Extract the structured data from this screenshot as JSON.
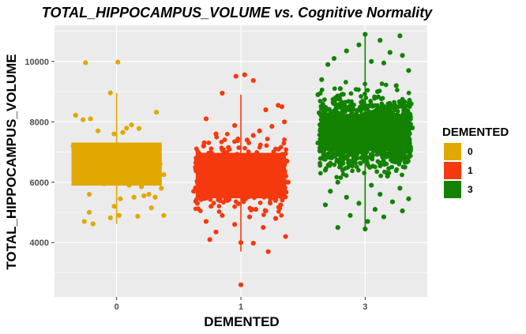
{
  "chart_data": {
    "type": "box",
    "title": "TOTAL_HIPPOCAMPUS_VOLUME vs. Cognitive Normality",
    "xlabel": "DEMENTED",
    "ylabel": "TOTAL_HIPPOCAMPUS_VOLUME",
    "categories": [
      "0",
      "1",
      "3"
    ],
    "y_ticks": [
      4000,
      6000,
      8000,
      10000
    ],
    "ylim": [
      2200,
      11200
    ],
    "grid": true,
    "legend": {
      "title": "DEMENTED",
      "position": "right",
      "entries": [
        "0",
        "1",
        "3"
      ]
    },
    "colors": {
      "0": "#E0A800",
      "1": "#F5390E",
      "3": "#128200",
      "panel": "#EBEBEB",
      "grid": "#FFFFFF"
    },
    "groups": [
      {
        "name": "0",
        "q1": 5900,
        "median": 5950,
        "q3": 7300,
        "whisker_low": 4620,
        "whisker_high": 8950,
        "points": [
          [
            -0.25,
            9960
          ],
          [
            0.01,
            9980
          ],
          [
            -0.05,
            8960
          ],
          [
            0.32,
            8320
          ],
          [
            -0.33,
            8220
          ],
          [
            -0.27,
            8070
          ],
          [
            -0.21,
            8100
          ],
          [
            0.12,
            7900
          ],
          [
            0.08,
            7790
          ],
          [
            0.18,
            7780
          ],
          [
            -0.15,
            7700
          ],
          [
            -0.02,
            7600
          ],
          [
            0.05,
            7650
          ],
          [
            -0.35,
            7200
          ],
          [
            0.25,
            7100
          ],
          [
            0.15,
            6900
          ],
          [
            0.35,
            6600
          ],
          [
            0.38,
            6250
          ],
          [
            0.3,
            6150
          ],
          [
            -0.1,
            5950
          ],
          [
            0.1,
            5900
          ],
          [
            0.2,
            5850
          ],
          [
            0.36,
            5800
          ],
          [
            0.26,
            5600
          ],
          [
            -0.22,
            5600
          ],
          [
            0.03,
            5450
          ],
          [
            0.14,
            5500
          ],
          [
            0.22,
            5550
          ],
          [
            0.31,
            5500
          ],
          [
            -0.02,
            5200
          ],
          [
            0.28,
            5150
          ],
          [
            0.38,
            4900
          ],
          [
            -0.22,
            5000
          ],
          [
            -0.05,
            4820
          ],
          [
            0.17,
            4870
          ],
          [
            -0.26,
            4700
          ],
          [
            -0.19,
            4620
          ],
          [
            0.02,
            4900
          ],
          [
            -0.3,
            6400
          ],
          [
            0.06,
            6100
          ]
        ]
      },
      {
        "name": "1",
        "q1": 5480,
        "median": 6200,
        "q3": 6960,
        "whisker_low": 3700,
        "whisker_high": 8900,
        "points": [
          [
            0.03,
            9560
          ],
          [
            -0.04,
            9510
          ],
          [
            0.1,
            9370
          ],
          [
            -0.15,
            8950
          ],
          [
            0.3,
            8550
          ],
          [
            0.33,
            8500
          ],
          [
            0.2,
            8400
          ],
          [
            -0.28,
            8100
          ],
          [
            0.35,
            8000
          ],
          [
            -0.05,
            7880
          ],
          [
            0.25,
            7850
          ],
          [
            0.15,
            7700
          ],
          [
            -0.2,
            7600
          ],
          [
            0.1,
            7550
          ],
          [
            0.05,
            7400
          ],
          [
            -0.3,
            7200
          ],
          [
            -0.1,
            7150
          ],
          [
            0.28,
            7100
          ],
          [
            -0.35,
            5300
          ],
          [
            0.32,
            5250
          ],
          [
            -0.24,
            5200
          ],
          [
            0.12,
            5100
          ],
          [
            0.2,
            5050
          ],
          [
            -0.15,
            4900
          ],
          [
            0.07,
            4850
          ],
          [
            0.28,
            4800
          ],
          [
            -0.28,
            4700
          ],
          [
            -0.05,
            4600
          ],
          [
            0.18,
            4500
          ],
          [
            -0.2,
            4350
          ],
          [
            0.36,
            4200
          ],
          [
            -0.25,
            4100
          ],
          [
            0.0,
            4000
          ],
          [
            0.1,
            3980
          ],
          [
            0.22,
            3700
          ],
          [
            0.0,
            2600
          ],
          [
            -0.38,
            5700
          ],
          [
            -0.36,
            6800
          ],
          [
            0.38,
            6000
          ],
          [
            0.37,
            6700
          ],
          [
            -0.12,
            5400
          ],
          [
            0.3,
            5600
          ],
          [
            -0.3,
            6300
          ],
          [
            0.08,
            6900
          ],
          [
            -0.18,
            6100
          ]
        ]
      },
      {
        "name": "3",
        "q1": 7050,
        "median": 7600,
        "q3": 8250,
        "whisker_low": 4500,
        "whisker_high": 10950,
        "points": [
          [
            0.0,
            10900
          ],
          [
            0.28,
            10850
          ],
          [
            0.12,
            10700
          ],
          [
            -0.05,
            10550
          ],
          [
            -0.15,
            10350
          ],
          [
            0.2,
            10300
          ],
          [
            0.3,
            10200
          ],
          [
            -0.25,
            10100
          ],
          [
            0.05,
            10000
          ],
          [
            0.15,
            9950
          ],
          [
            -0.3,
            9900
          ],
          [
            0.35,
            9700
          ],
          [
            -0.35,
            9400
          ],
          [
            0.25,
            9200
          ],
          [
            -0.2,
            9100
          ],
          [
            0.1,
            9000
          ],
          [
            -0.1,
            6700
          ],
          [
            0.32,
            6500
          ],
          [
            -0.32,
            6400
          ],
          [
            0.18,
            6200
          ],
          [
            -0.22,
            6000
          ],
          [
            0.05,
            5900
          ],
          [
            0.28,
            5800
          ],
          [
            -0.28,
            5700
          ],
          [
            0.12,
            5600
          ],
          [
            -0.15,
            5500
          ],
          [
            0.35,
            5450
          ],
          [
            0.22,
            5350
          ],
          [
            -0.05,
            5300
          ],
          [
            -0.32,
            5250
          ],
          [
            0.08,
            5100
          ],
          [
            0.3,
            5050
          ],
          [
            -0.12,
            4900
          ],
          [
            0.15,
            4850
          ],
          [
            0.02,
            4700
          ],
          [
            -0.22,
            4500
          ],
          [
            0.0,
            4450
          ],
          [
            -0.38,
            7300
          ],
          [
            0.38,
            7800
          ],
          [
            -0.37,
            8300
          ],
          [
            0.37,
            8600
          ],
          [
            -0.38,
            8900
          ],
          [
            0.36,
            7000
          ]
        ]
      }
    ]
  }
}
